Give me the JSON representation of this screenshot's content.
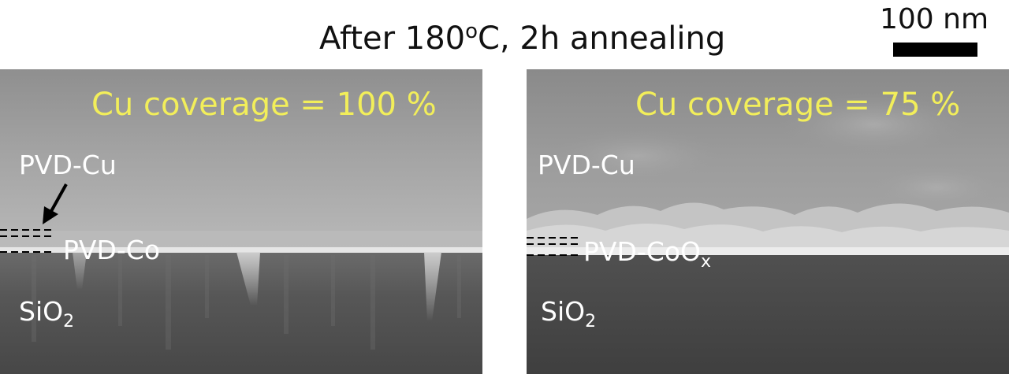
{
  "figure": {
    "title_prefix": "After 180",
    "title_degree": "o",
    "title_suffix": "C, 2h annealing",
    "scale_bar_label": "100 nm"
  },
  "panels": [
    {
      "coverage_label": "Cu coverage = 100 %",
      "top_layer_label": "PVD-Cu",
      "mid_layer_label": "PVD-Co",
      "mid_layer_subscript": "",
      "substrate_label": "SiO",
      "substrate_subscript": "2"
    },
    {
      "coverage_label": "Cu coverage = 75 %",
      "top_layer_label": "PVD-Cu",
      "mid_layer_label": "PVD-CoO",
      "mid_layer_subscript": "x",
      "substrate_label": "SiO",
      "substrate_subscript": "2"
    }
  ],
  "colors": {
    "coverage_text": "#f2ee5a",
    "layer_text": "#ffffff",
    "sem_background": "#9a9a9a",
    "substrate": "#4a4a4a"
  }
}
